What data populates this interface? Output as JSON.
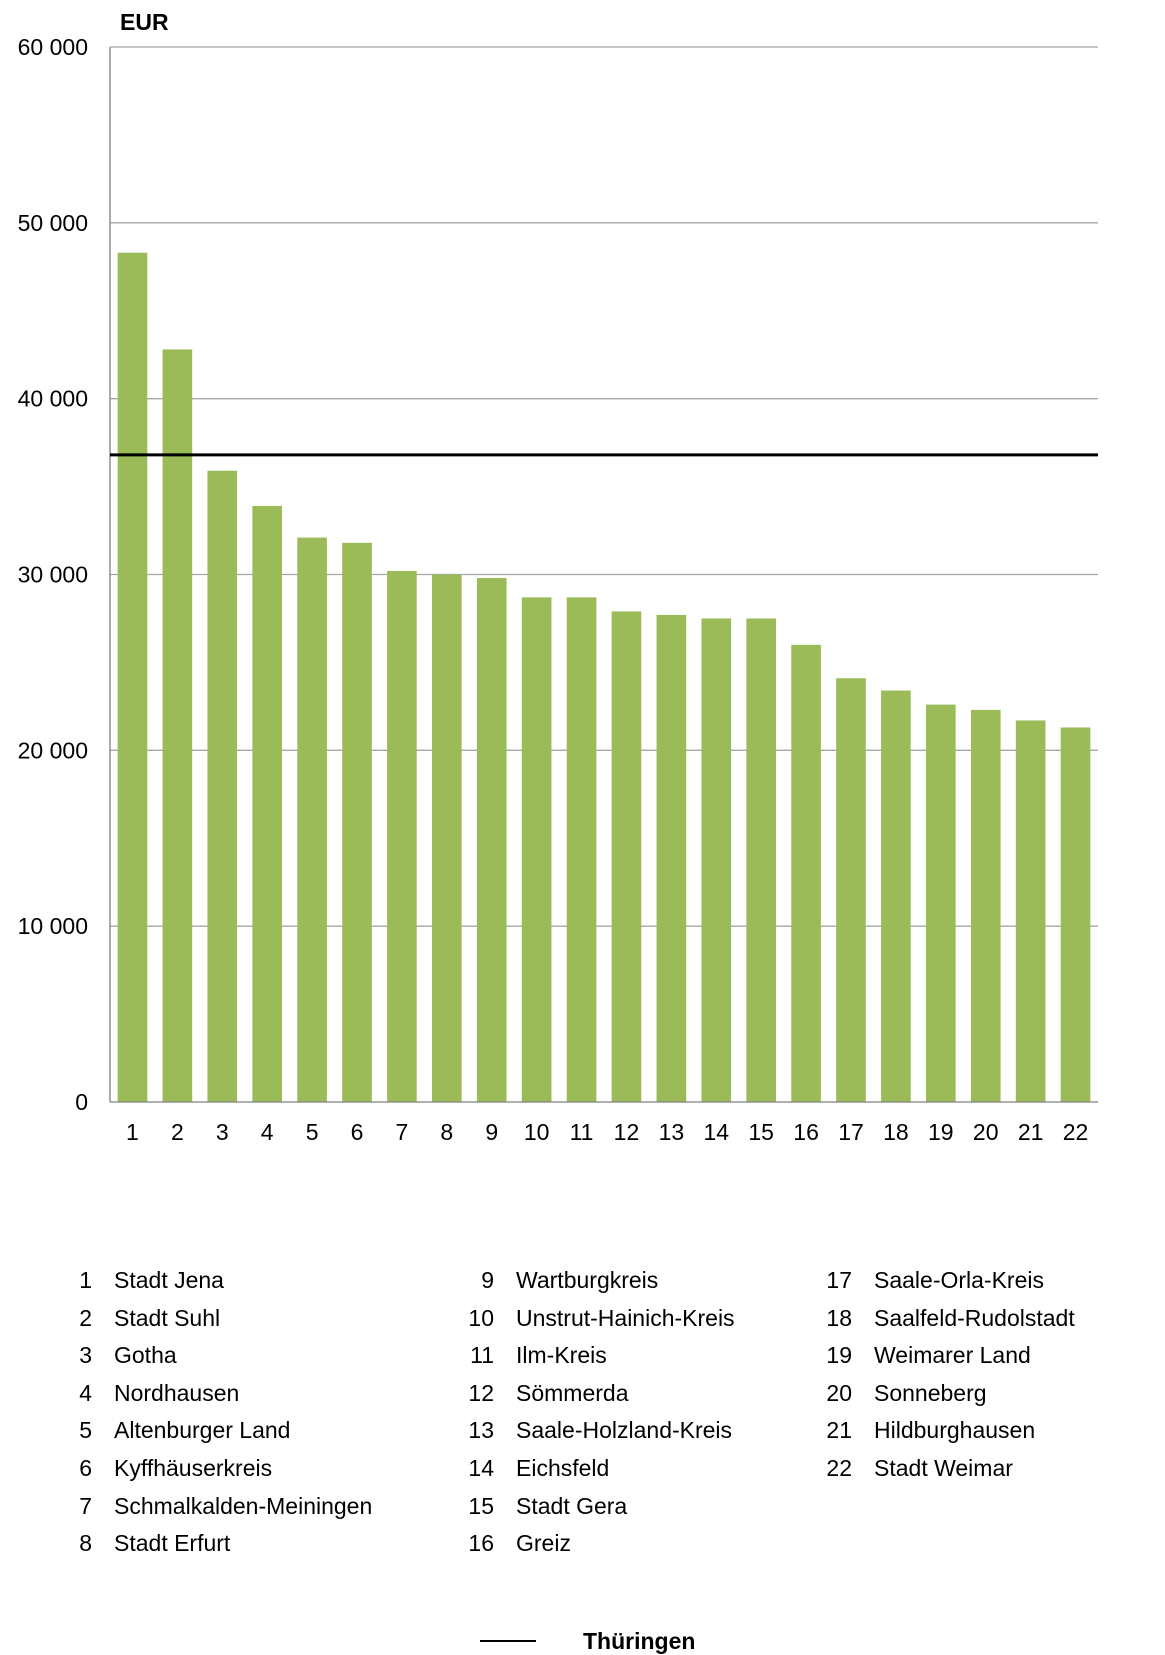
{
  "chart_data": {
    "type": "bar",
    "unit_label": "EUR",
    "categories": [
      "1",
      "2",
      "3",
      "4",
      "5",
      "6",
      "7",
      "8",
      "9",
      "10",
      "11",
      "12",
      "13",
      "14",
      "15",
      "16",
      "17",
      "18",
      "19",
      "20",
      "21",
      "22"
    ],
    "values": [
      48300,
      42800,
      35900,
      33900,
      32100,
      31800,
      30200,
      30000,
      29800,
      28700,
      28700,
      27900,
      27700,
      27500,
      27500,
      26000,
      24100,
      23400,
      22600,
      22300,
      21700,
      21300
    ],
    "yticks": [
      "0",
      "10 000",
      "20 000",
      "30 000",
      "40 000",
      "50 000",
      "60 000"
    ],
    "ylim": [
      0,
      60000
    ],
    "grid": true,
    "bar_color": "#9bbb59",
    "reference_line": {
      "name": "Thüringen",
      "value": 36800,
      "color": "#000000"
    },
    "legend": [
      {
        "num": "1",
        "name": "Stadt Jena"
      },
      {
        "num": "2",
        "name": "Stadt Suhl"
      },
      {
        "num": "3",
        "name": "Gotha"
      },
      {
        "num": "4",
        "name": "Nordhausen"
      },
      {
        "num": "5",
        "name": "Altenburger Land"
      },
      {
        "num": "6",
        "name": "Kyffhäuserkreis"
      },
      {
        "num": "7",
        "name": "Schmalkalden-Meiningen"
      },
      {
        "num": "8",
        "name": "Stadt Erfurt"
      },
      {
        "num": "9",
        "name": "Wartburgkreis"
      },
      {
        "num": "10",
        "name": "Unstrut-Hainich-Kreis"
      },
      {
        "num": "11",
        "name": "Ilm-Kreis"
      },
      {
        "num": "12",
        "name": "Sömmerda"
      },
      {
        "num": "13",
        "name": "Saale-Holzland-Kreis"
      },
      {
        "num": "14",
        "name": "Eichsfeld"
      },
      {
        "num": "15",
        "name": "Stadt Gera"
      },
      {
        "num": "16",
        "name": "Greiz"
      },
      {
        "num": "17",
        "name": "Saale-Orla-Kreis"
      },
      {
        "num": "18",
        "name": "Saalfeld-Rudolstadt"
      },
      {
        "num": "19",
        "name": "Weimarer Land"
      },
      {
        "num": "20",
        "name": "Sonneberg"
      },
      {
        "num": "21",
        "name": "Hildburghausen"
      },
      {
        "num": "22",
        "name": "Stadt  Weimar"
      }
    ]
  }
}
